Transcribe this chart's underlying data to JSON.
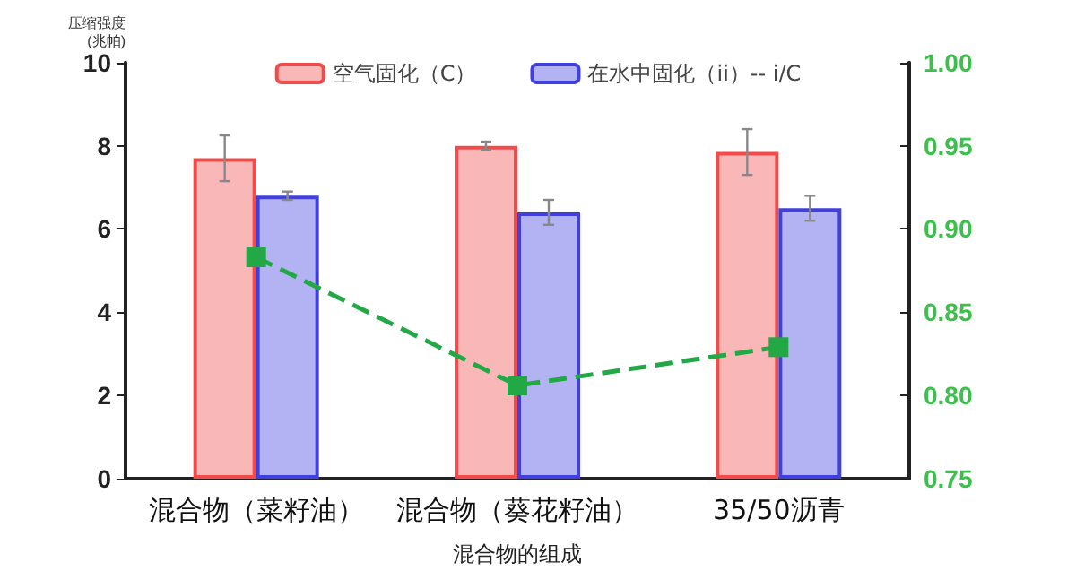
{
  "chart_data": {
    "type": "bar",
    "xlabel": "混合物的组成",
    "ylabel": "压缩强度\n(兆帕)",
    "categories": [
      "混合物（菜籽油）",
      "混合物（葵花籽油）",
      "35/50沥青"
    ],
    "series": [
      {
        "name": "空气固化（C）",
        "color": "#f24b4b",
        "values": [
          7.7,
          8.0,
          7.85
        ],
        "errors": [
          0.55,
          0.1,
          0.55
        ]
      },
      {
        "name": "在水中固化（ii）-- i/C",
        "color": "#4040e0",
        "values": [
          6.8,
          6.4,
          6.5
        ],
        "errors": [
          0.1,
          0.3,
          0.3
        ]
      },
      {
        "type": "line",
        "axis": "y2",
        "color": "#22a844",
        "values": [
          0.883,
          0.806,
          0.829
        ],
        "marker": "square",
        "line_style": "dashed"
      }
    ],
    "ylim": [
      0,
      10
    ],
    "yticks": [
      0,
      2,
      4,
      6,
      8,
      10
    ],
    "y2lim": [
      0.75,
      1.0
    ],
    "y2ticks": [
      {
        "value": 0.75,
        "label": "0.75"
      },
      {
        "value": 0.8,
        "label": "0.80"
      },
      {
        "value": 0.85,
        "label": "0.85"
      },
      {
        "value": 0.9,
        "label": "0.90"
      },
      {
        "value": 0.95,
        "label": "0.95"
      },
      {
        "value": 1.0,
        "label": "1.00"
      }
    ],
    "legend": "top",
    "grid": false
  }
}
